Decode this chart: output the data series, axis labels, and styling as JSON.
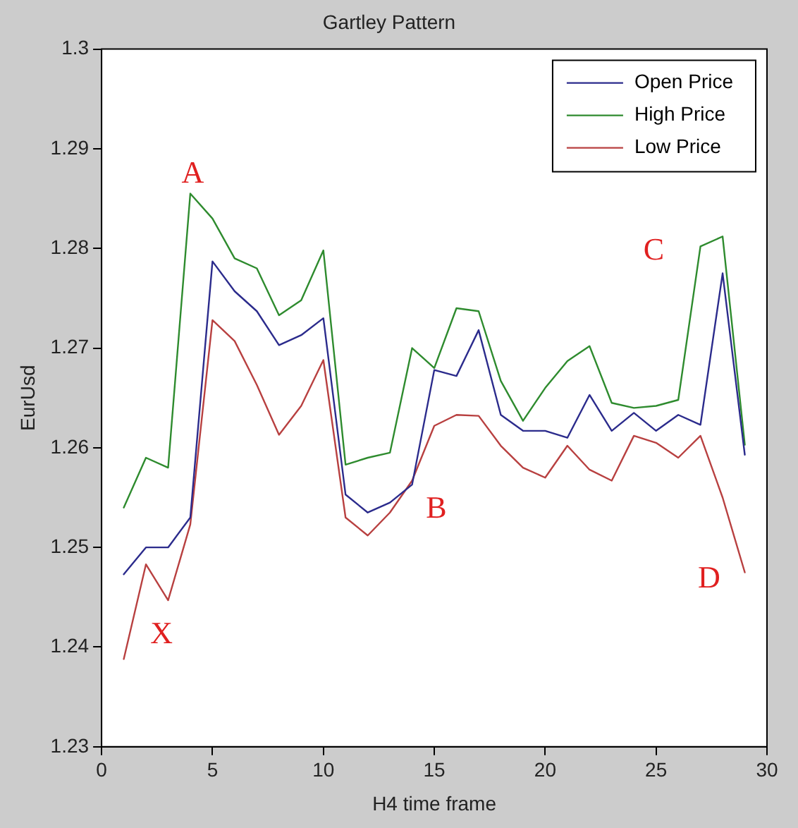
{
  "chart_data": {
    "type": "line",
    "title": "Gartley Pattern",
    "xlabel": "H4 time frame",
    "ylabel": "EurUsd",
    "x": [
      1,
      2,
      3,
      4,
      5,
      6,
      7,
      8,
      9,
      10,
      11,
      12,
      13,
      14,
      15,
      16,
      17,
      18,
      19,
      20,
      21,
      22,
      23,
      24,
      25,
      26,
      27,
      28,
      29
    ],
    "series": [
      {
        "name": "Open Price",
        "color": "#2b2b8c",
        "values": [
          1.2473,
          1.25,
          1.25,
          1.253,
          1.2787,
          1.2757,
          1.2737,
          1.2703,
          1.2713,
          1.273,
          1.2553,
          1.2535,
          1.2545,
          1.2563,
          1.2678,
          1.2672,
          1.2718,
          1.2633,
          1.2617,
          1.2617,
          1.261,
          1.2653,
          1.2617,
          1.2635,
          1.2617,
          1.2633,
          1.2623,
          1.2775,
          1.2593
        ]
      },
      {
        "name": "High Price",
        "color": "#2e8b2e",
        "values": [
          1.254,
          1.259,
          1.258,
          1.2855,
          1.283,
          1.279,
          1.278,
          1.2733,
          1.2748,
          1.2798,
          1.2583,
          1.259,
          1.2595,
          1.27,
          1.268,
          1.274,
          1.2737,
          1.2667,
          1.2627,
          1.266,
          1.2687,
          1.2702,
          1.2645,
          1.264,
          1.2642,
          1.2648,
          1.2802,
          1.2812,
          1.2603
        ]
      },
      {
        "name": "Low Price",
        "color": "#b84040",
        "values": [
          1.2388,
          1.2483,
          1.2447,
          1.2523,
          1.2728,
          1.2707,
          1.2663,
          1.2613,
          1.2642,
          1.2688,
          1.253,
          1.2512,
          1.2535,
          1.2567,
          1.2622,
          1.2633,
          1.2632,
          1.2602,
          1.258,
          1.257,
          1.2602,
          1.2578,
          1.2567,
          1.2612,
          1.2605,
          1.259,
          1.2612,
          1.255,
          1.2475
        ]
      }
    ],
    "annotations": [
      "A",
      "X",
      "B",
      "C",
      "D"
    ],
    "xlim": [
      0,
      30
    ],
    "xticks": [
      0,
      5,
      10,
      15,
      20,
      25,
      30
    ],
    "ylim": [
      1.23,
      1.3
    ],
    "yticks": [
      1.23,
      1.24,
      1.25,
      1.26,
      1.27,
      1.28,
      1.29,
      1.3
    ],
    "grid": false,
    "legend": "top right",
    "marker": "none",
    "line_style": "solid"
  }
}
